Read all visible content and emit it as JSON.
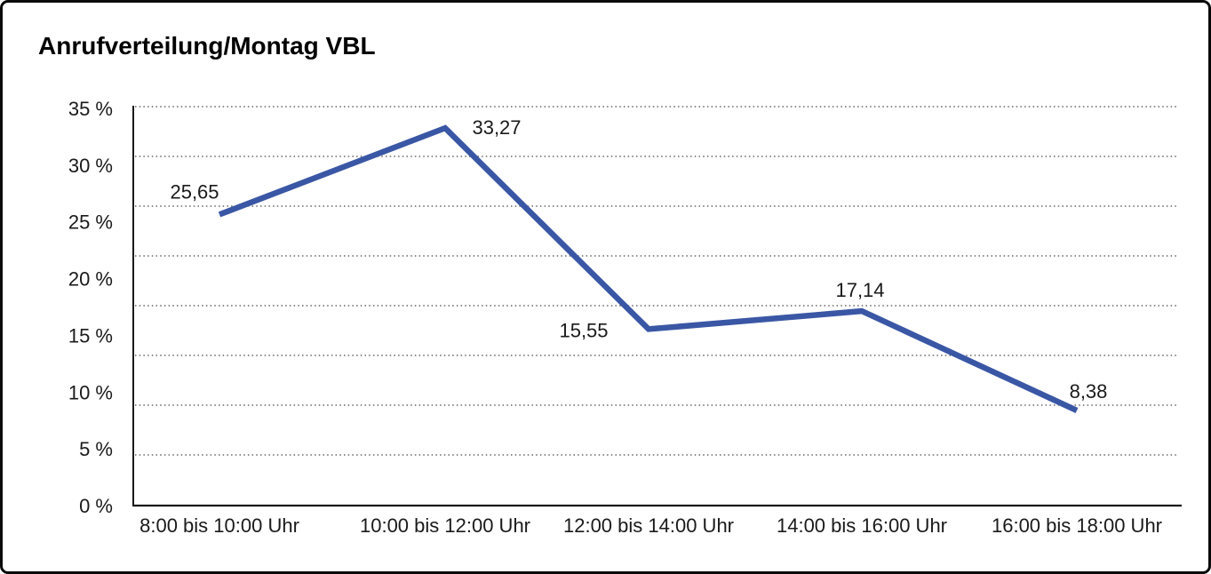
{
  "chart_data": {
    "type": "line",
    "title": "Anrufverteilung/Montag VBL",
    "categories": [
      "8:00 bis 10:00 Uhr",
      "10:00 bis 12:00 Uhr",
      "12:00 bis 14:00 Uhr",
      "14:00 bis 16:00 Uhr",
      "16:00 bis 18:00 Uhr"
    ],
    "values": [
      25.65,
      33.27,
      15.55,
      17.14,
      8.38
    ],
    "data_labels": [
      "25,65",
      "33,27",
      "15,55",
      "17,14",
      "8,38"
    ],
    "series_name": "Anrufverteilung Montag VBL",
    "unit": "%",
    "xlabel": "",
    "ylabel": "",
    "y_ticks": [
      "35 %",
      "30 %",
      "25 %",
      "20 %",
      "15 %",
      "10 %",
      "5 %",
      "0 %"
    ],
    "y_tick_values": [
      35,
      30,
      25,
      20,
      15,
      10,
      5,
      0
    ],
    "ylim": [
      0,
      35
    ],
    "grid": "horizontal-dotted",
    "gridline_count": 9,
    "legend": "none",
    "line_color": "#3A57A5",
    "text_color": "#1a1a1a",
    "grid_color": "#474747",
    "axis_color": "#1a1a1a",
    "background_color": "#ffffff",
    "border_color": "#0a0a0a"
  }
}
